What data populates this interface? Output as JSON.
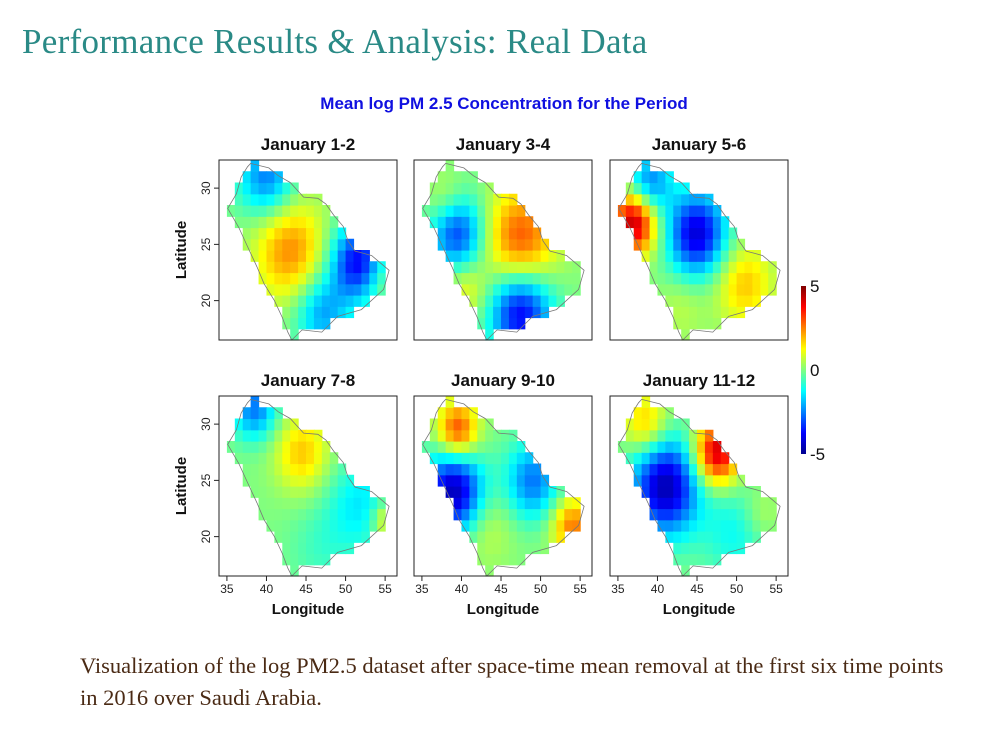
{
  "slide": {
    "title": "Performance Results & Analysis: Real Data",
    "caption": "Visualization of the log PM2.5 dataset after space-time mean removal at the first six time points in 2016 over Saudi Arabia."
  },
  "chart_data": {
    "type": "heatmap",
    "title": "Mean log PM 2.5 Concentration for the Period",
    "title_color": "#1010e0",
    "xlabel": "Longitude",
    "ylabel": "Latitude",
    "xlim": [
      34,
      56.5
    ],
    "ylim": [
      16.5,
      32.5
    ],
    "xticks": [
      35,
      40,
      45,
      50,
      55
    ],
    "yticks": [
      20,
      25,
      30
    ],
    "grid": false,
    "colorbar": {
      "min": -5,
      "max": 5,
      "ticks": [
        5,
        0,
        -5
      ],
      "placement": "right"
    },
    "colormap": [
      "#00008f",
      "#0000ff",
      "#0080ff",
      "#00ffff",
      "#80ff80",
      "#ffff00",
      "#ff8000",
      "#ff0000",
      "#800000"
    ],
    "panels": [
      {
        "label": "January 1-2",
        "hotspots": [
          {
            "lon": 43,
            "lat": 24.5,
            "value": 2.4,
            "radius": 3.2
          },
          {
            "lon": 40,
            "lat": 31,
            "value": -2.6,
            "radius": 2.5
          },
          {
            "lon": 51.5,
            "lat": 23.5,
            "value": -3.8,
            "radius": 2.4
          },
          {
            "lon": 47,
            "lat": 19,
            "value": -2.2,
            "radius": 2.4
          },
          {
            "lon": 54.5,
            "lat": 22,
            "value": 0.7,
            "radius": 1.6
          }
        ]
      },
      {
        "label": "January 3-4",
        "hotspots": [
          {
            "lon": 47.5,
            "lat": 25.5,
            "value": 3.0,
            "radius": 3.2
          },
          {
            "lon": 39.5,
            "lat": 26,
            "value": -3.2,
            "radius": 2.4
          },
          {
            "lon": 47.5,
            "lat": 19,
            "value": -4.0,
            "radius": 2.8
          },
          {
            "lon": 40.5,
            "lat": 21,
            "value": 1.2,
            "radius": 2.0
          },
          {
            "lon": 38,
            "lat": 29,
            "value": 0.9,
            "radius": 1.8
          }
        ]
      },
      {
        "label": "January 5-6",
        "hotspots": [
          {
            "lon": 37,
            "lat": 27,
            "value": 4.6,
            "radius": 2.0
          },
          {
            "lon": 45,
            "lat": 26,
            "value": -4.2,
            "radius": 2.6
          },
          {
            "lon": 39,
            "lat": 30.5,
            "value": -2.6,
            "radius": 2.0
          },
          {
            "lon": 51,
            "lat": 21.5,
            "value": 1.8,
            "radius": 2.6
          },
          {
            "lon": 43,
            "lat": 19.5,
            "value": 0.6,
            "radius": 2.2
          }
        ]
      },
      {
        "label": "January 7-8",
        "hotspots": [
          {
            "lon": 44.5,
            "lat": 27.5,
            "value": 1.8,
            "radius": 2.4
          },
          {
            "lon": 38.5,
            "lat": 31.5,
            "value": -2.6,
            "radius": 2.0
          },
          {
            "lon": 52,
            "lat": 23,
            "value": -1.4,
            "radius": 3.0
          },
          {
            "lon": 47,
            "lat": 19,
            "value": -0.6,
            "radius": 3.0
          },
          {
            "lon": 55,
            "lat": 21.5,
            "value": 1.6,
            "radius": 1.2
          }
        ]
      },
      {
        "label": "January 9-10",
        "hotspots": [
          {
            "lon": 39.5,
            "lat": 29.5,
            "value": 3.2,
            "radius": 1.8
          },
          {
            "lon": 39,
            "lat": 24,
            "value": -4.6,
            "radius": 2.6
          },
          {
            "lon": 49,
            "lat": 25,
            "value": -2.6,
            "radius": 2.4
          },
          {
            "lon": 43,
            "lat": 21,
            "value": 0.8,
            "radius": 2.4
          },
          {
            "lon": 54,
            "lat": 21,
            "value": 2.6,
            "radius": 1.8
          }
        ]
      },
      {
        "label": "January 11-12",
        "hotspots": [
          {
            "lon": 47.5,
            "lat": 27.5,
            "value": 4.4,
            "radius": 2.0
          },
          {
            "lon": 41,
            "lat": 24.5,
            "value": -4.6,
            "radius": 3.0
          },
          {
            "lon": 38.5,
            "lat": 30,
            "value": 2.0,
            "radius": 2.0
          },
          {
            "lon": 50,
            "lat": 20.5,
            "value": -1.2,
            "radius": 3.0
          },
          {
            "lon": 53,
            "lat": 22,
            "value": 0.8,
            "radius": 1.8
          }
        ]
      }
    ]
  }
}
